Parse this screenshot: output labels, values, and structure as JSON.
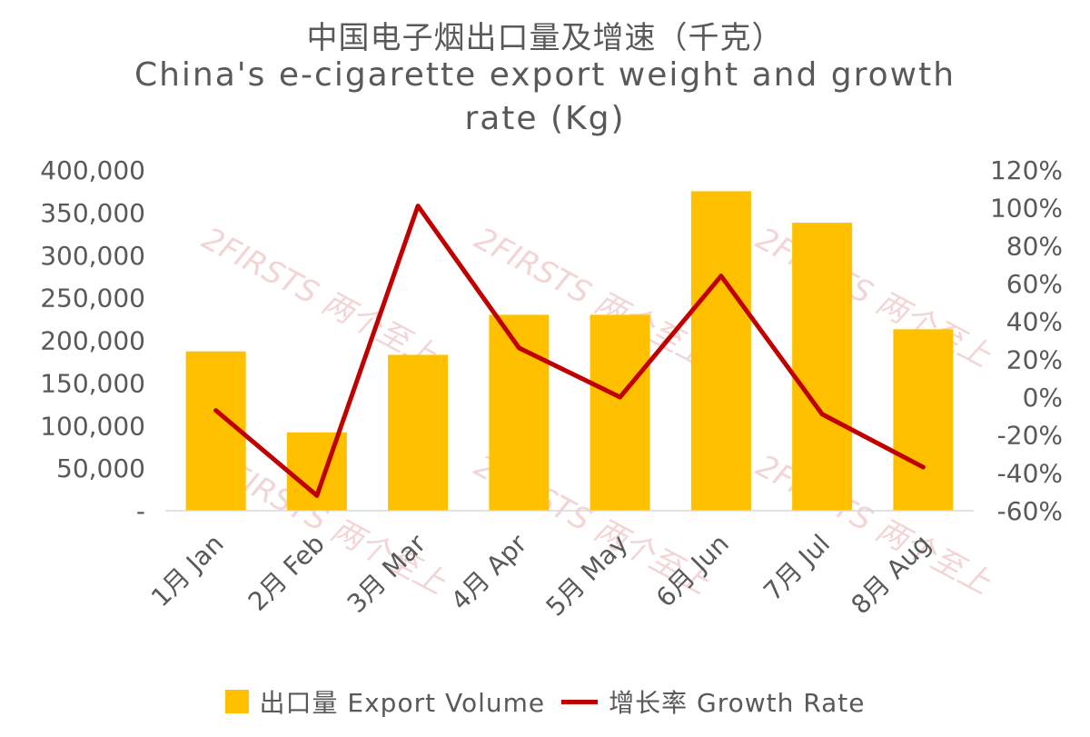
{
  "chart_data": {
    "type": "bar",
    "title": "中国电子烟出口量及增速（千克）",
    "subtitle_line1": "China's e-cigarette export weight and growth",
    "subtitle_line2": "rate (Kg)",
    "categories": [
      "1月 Jan",
      "2月 Feb",
      "3月 Mar",
      "4月 Apr",
      "5月 May",
      "6月 Jun",
      "7月 Jul",
      "8月 Aug"
    ],
    "series": [
      {
        "name": "出口量 Export Volume",
        "type": "bar",
        "axis": "left",
        "color": "#FFC000",
        "values": [
          187000,
          92000,
          183000,
          230000,
          230000,
          375000,
          338000,
          213000
        ]
      },
      {
        "name": "增长率 Growth Rate",
        "type": "line",
        "axis": "right",
        "color": "#C00000",
        "values": [
          -7,
          -52,
          101,
          26,
          0,
          64,
          -9,
          -37
        ]
      }
    ],
    "left_axis": {
      "min": 0,
      "max": 400000,
      "step": 50000,
      "tick_labels": [
        "-",
        "50,000",
        "100,000",
        "150,000",
        "200,000",
        "250,000",
        "300,000",
        "350,000",
        "400,000"
      ]
    },
    "right_axis": {
      "min": -60,
      "max": 120,
      "step": 20,
      "tick_labels": [
        "-60%",
        "-40%",
        "-20%",
        "0%",
        "20%",
        "40%",
        "60%",
        "80%",
        "100%",
        "120%"
      ]
    },
    "grid": false,
    "legend_position": "bottom",
    "watermark": "2FIRSTS 两个至上"
  }
}
